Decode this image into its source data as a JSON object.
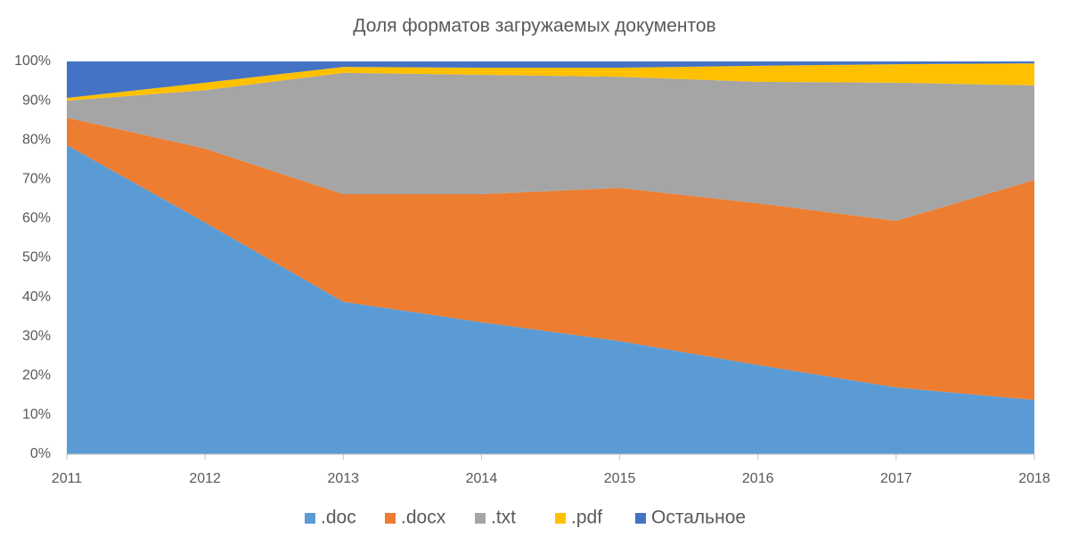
{
  "chart_data": {
    "type": "stacked_area",
    "title": "Доля форматов загружаемых документов",
    "categories": [
      "2011",
      "2012",
      "2013",
      "2014",
      "2015",
      "2016",
      "2017",
      "2018"
    ],
    "series": [
      {
        "name": ".doc",
        "color": "#5b9bd5",
        "values": [
          78.7,
          59.0,
          38.8,
          33.6,
          28.8,
          22.7,
          17.0,
          13.8
        ]
      },
      {
        "name": ".docx",
        "color": "#ed7d31",
        "values": [
          7.0,
          18.8,
          27.4,
          32.6,
          39.0,
          41.2,
          42.4,
          56.0
        ]
      },
      {
        "name": ".txt",
        "color": "#a5a5a5",
        "values": [
          4.3,
          14.9,
          30.9,
          30.4,
          28.3,
          30.9,
          35.2,
          24.1
        ]
      },
      {
        "name": ".pdf",
        "color": "#ffc000",
        "values": [
          0.7,
          1.9,
          1.5,
          1.8,
          2.3,
          4.1,
          4.7,
          5.6
        ]
      },
      {
        "name": "Остальное",
        "color": "#4472c4",
        "values": [
          9.3,
          5.4,
          1.4,
          1.6,
          1.6,
          1.1,
          0.7,
          0.5
        ]
      }
    ],
    "ylim": [
      0,
      100
    ],
    "yticks": [
      {
        "value": 0,
        "label": "0%"
      },
      {
        "value": 10,
        "label": "10%"
      },
      {
        "value": 20,
        "label": "20%"
      },
      {
        "value": 30,
        "label": "30%"
      },
      {
        "value": 40,
        "label": "40%"
      },
      {
        "value": 50,
        "label": "50%"
      },
      {
        "value": 60,
        "label": "60%"
      },
      {
        "value": 70,
        "label": "70%"
      },
      {
        "value": 80,
        "label": "80%"
      },
      {
        "value": 90,
        "label": "90%"
      },
      {
        "value": 100,
        "label": "100%"
      }
    ],
    "legend": "bottom"
  }
}
